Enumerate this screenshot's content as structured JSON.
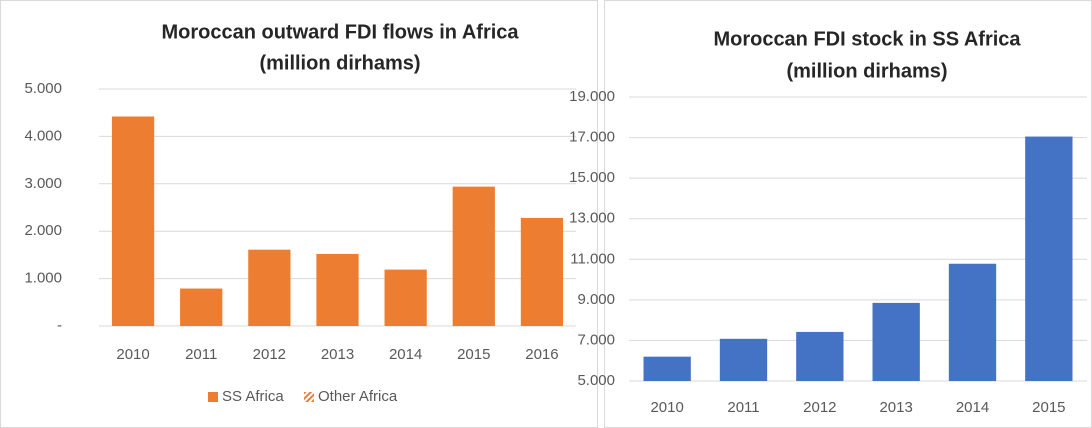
{
  "chart_data": [
    {
      "type": "bar",
      "title": [
        "Moroccan outward FDI flows in Africa",
        "(million dirhams)"
      ],
      "categories": [
        "2010",
        "2011",
        "2012",
        "2013",
        "2014",
        "2015",
        "2016"
      ],
      "series": [
        {
          "name": "SS Africa",
          "color": "#ED7D31",
          "values": [
            4420,
            790,
            1610,
            1520,
            1190,
            2940,
            2280
          ]
        },
        {
          "name": "Other Africa",
          "color": "#ED7D31",
          "values": [
            null,
            null,
            null,
            null,
            null,
            null,
            null
          ]
        }
      ],
      "ylim": [
        0,
        5000
      ],
      "yticks": [
        {
          "value": 0,
          "label": "-"
        },
        {
          "value": 1000,
          "label": "1.000"
        },
        {
          "value": 2000,
          "label": "2.000"
        },
        {
          "value": 3000,
          "label": "3.000"
        },
        {
          "value": 4000,
          "label": "4.000"
        },
        {
          "value": 5000,
          "label": "5.000"
        }
      ],
      "grid": true,
      "legend": "bottom"
    },
    {
      "type": "bar",
      "title": [
        "Moroccan FDI stock in SS Africa",
        "(million dirhams)"
      ],
      "categories": [
        "2010",
        "2011",
        "2012",
        "2013",
        "2014",
        "2015"
      ],
      "values": [
        6200,
        7080,
        7420,
        8850,
        10780,
        17050
      ],
      "color": "#4472C4",
      "ylim": [
        5000,
        19000
      ],
      "yticks": [
        {
          "value": 5000,
          "label": "5.000"
        },
        {
          "value": 7000,
          "label": "7.000"
        },
        {
          "value": 9000,
          "label": "9.000"
        },
        {
          "value": 11000,
          "label": "11.000"
        },
        {
          "value": 13000,
          "label": "13.000"
        },
        {
          "value": 15000,
          "label": "15.000"
        },
        {
          "value": 17000,
          "label": "17.000"
        },
        {
          "value": 19000,
          "label": "19.000"
        }
      ],
      "grid": true
    }
  ]
}
